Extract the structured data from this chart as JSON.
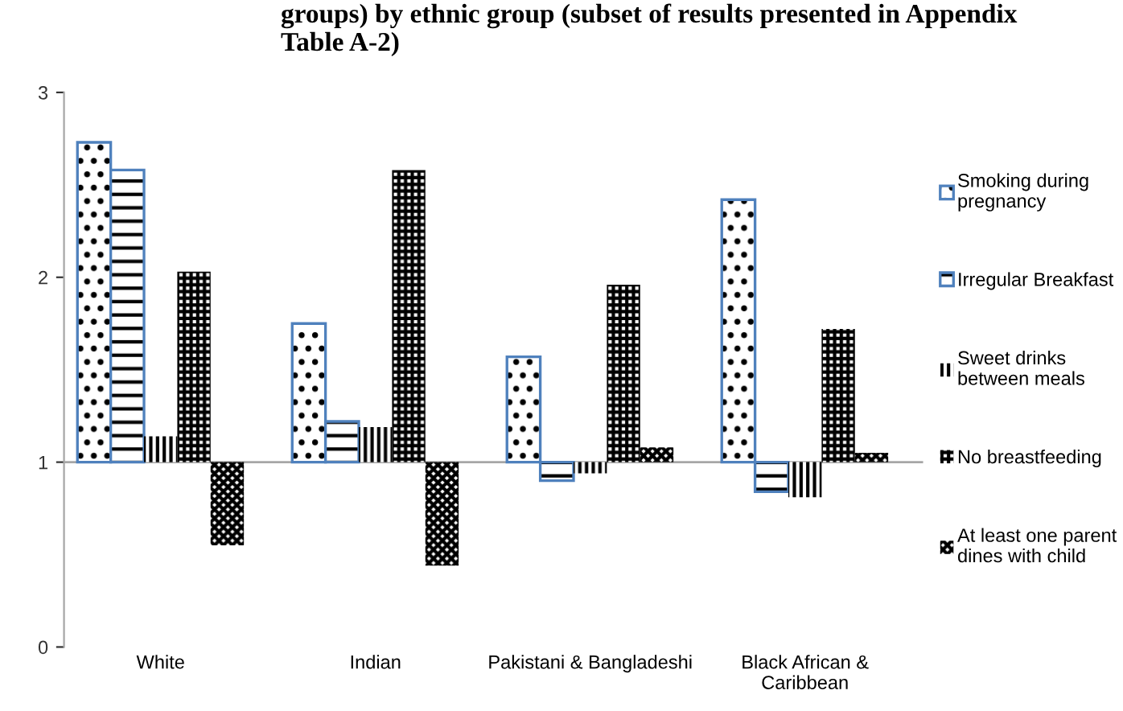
{
  "chart_data": {
    "type": "bar",
    "title": "groups) by ethnic group (subset of results presented in Appendix\nTable A-2)",
    "categories": [
      "White",
      "Indian",
      "Pakistani & Bangladeshi",
      "Black African &\nCaribbean"
    ],
    "series": [
      {
        "name": "Smoking during\npregnancy",
        "color": "#4f81bd",
        "base": [
          1,
          1,
          1,
          1
        ],
        "values": [
          1.73,
          0.75,
          0.57,
          1.42
        ]
      },
      {
        "name": "Irregular Breakfast",
        "color": "#4f81bd",
        "base": [
          1,
          1,
          1,
          1
        ],
        "values": [
          1.58,
          0.22,
          -0.1,
          -0.16
        ]
      },
      {
        "name": "Sweet drinks\nbetween meals",
        "color": "#000000",
        "base": [
          1,
          1,
          1,
          1
        ],
        "values": [
          0.14,
          0.19,
          -0.06,
          -0.19
        ]
      },
      {
        "name": "No breastfeeding",
        "color": "#000000",
        "base": [
          1,
          1,
          1,
          1
        ],
        "values": [
          1.03,
          1.58,
          0.96,
          0.72
        ]
      },
      {
        "name": "At least one parent\ndines with child",
        "color": "#000000",
        "base": [
          1,
          1,
          1,
          1
        ],
        "values": [
          -0.45,
          -0.56,
          0.08,
          0.05
        ]
      }
    ],
    "ylim": [
      0,
      3
    ],
    "yticks": [
      0,
      1,
      2,
      3
    ],
    "ref_lines": [
      {
        "axis": "y",
        "value": 1,
        "color": "#a6a6a6"
      }
    ],
    "grid": false,
    "legend": "right"
  }
}
